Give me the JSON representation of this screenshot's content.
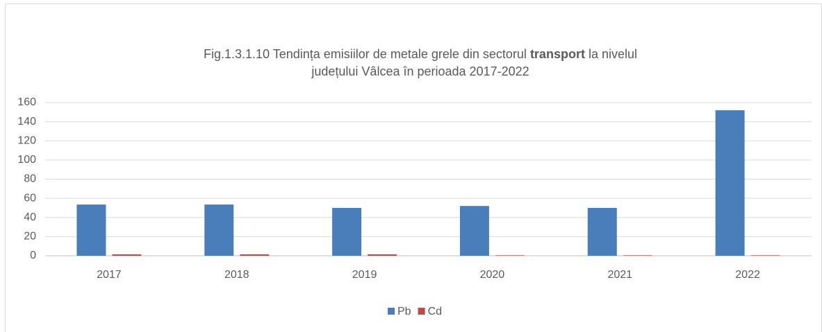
{
  "chart_data": {
    "type": "bar",
    "title": [
      [
        "Fig.1.3.1.10 Tendința  emisiilor de metale grele din sectorul",
        "transport",
        "la nivelul"
      ],
      [
        "județului Vâlcea în perioada 2017-2022"
      ]
    ],
    "categories": [
      "2017",
      "2018",
      "2019",
      "2020",
      "2021",
      "2022"
    ],
    "series": [
      {
        "name": "Pb",
        "color": "#4a7ebb",
        "values": [
          53.5,
          53.5,
          50,
          52,
          50,
          152
        ]
      },
      {
        "name": "Cd",
        "color": "#be4b48",
        "values": [
          1.5,
          1.5,
          1.5,
          0.5,
          0.5,
          0.5
        ]
      }
    ],
    "ylim": [
      0,
      160
    ],
    "yticks": [
      0,
      20,
      40,
      60,
      80,
      100,
      120,
      140,
      160
    ],
    "grid": true,
    "legend": "bottom"
  }
}
